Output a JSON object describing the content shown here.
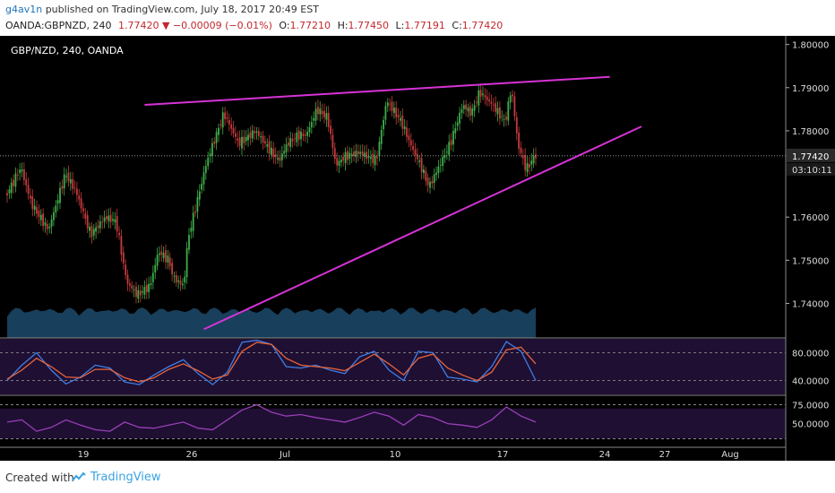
{
  "header": {
    "author": "g4av1n",
    "published_text": "published on TradingView.com, July 18, 2017 20:49 EST",
    "symbol": "OANDA:GBPNZD, 240",
    "last": "1.77420",
    "change_arrow": "▼",
    "change": "−0.00009 (−0.01%)",
    "o_label": "O:",
    "o_value": "1.77210",
    "h_label": "H:",
    "h_value": "1.77450",
    "l_label": "L:",
    "l_value": "1.77191",
    "c_label": "C:",
    "c_value": "1.77420"
  },
  "chart_data": {
    "type": "line",
    "title": "GBP/NZD, 240, OANDA",
    "xlabel": "",
    "ylabel": "",
    "x_ticks": [
      "19",
      "26",
      "Jul",
      "10",
      "17",
      "24",
      "27",
      "Aug"
    ],
    "y_ticks": [
      "1.80000",
      "1.79000",
      "1.78000",
      "1.76000",
      "1.75000",
      "1.74000"
    ],
    "ylim": [
      1.732,
      1.802
    ],
    "last_price_label": "1.77420",
    "countdown_label": "03:10:11",
    "last_price": 1.7742,
    "price_path": {
      "bar_index": [
        0,
        7,
        12,
        20,
        28,
        33,
        40,
        47,
        52,
        57,
        62,
        68,
        72,
        77,
        79,
        84,
        86,
        95,
        103,
        110,
        118,
        124,
        129,
        133,
        138,
        142,
        147,
        152,
        156,
        160,
        167,
        175,
        180,
        187,
        192,
        196,
        200,
        206,
        210,
        216,
        220,
        224,
        230,
        236,
        239,
        242,
        246,
        250
      ],
      "close": [
        1.765,
        1.7715,
        1.763,
        1.757,
        1.77,
        1.766,
        1.756,
        1.76,
        1.759,
        1.745,
        1.742,
        1.744,
        1.752,
        1.75,
        1.746,
        1.744,
        1.755,
        1.773,
        1.784,
        1.777,
        1.78,
        1.776,
        1.773,
        1.777,
        1.779,
        1.779,
        1.785,
        1.783,
        1.772,
        1.774,
        1.775,
        1.773,
        1.787,
        1.782,
        1.776,
        1.772,
        1.767,
        1.773,
        1.777,
        1.786,
        1.784,
        1.789,
        1.786,
        1.782,
        1.79,
        1.777,
        1.771,
        1.7742
      ]
    },
    "trendlines": [
      {
        "name": "upper",
        "from": {
          "bar": 65,
          "price": 1.786
        },
        "to": {
          "bar": 285,
          "price": 1.7925
        }
      },
      {
        "name": "lower",
        "from": {
          "bar": 93,
          "price": 1.734
        },
        "to": {
          "bar": 300,
          "price": 1.781
        }
      }
    ],
    "panels": [
      {
        "name": "stochastic",
        "y_ticks": [
          "80.0000",
          "40.0000"
        ],
        "ylim": [
          20,
          100
        ],
        "k": [
          40,
          62,
          80,
          55,
          35,
          45,
          62,
          58,
          38,
          34,
          48,
          60,
          70,
          50,
          34,
          52,
          95,
          98,
          92,
          60,
          58,
          62,
          55,
          50,
          74,
          82,
          55,
          40,
          82,
          80,
          45,
          42,
          38,
          60,
          96,
          82,
          40
        ],
        "d": [
          42,
          55,
          72,
          60,
          45,
          44,
          56,
          56,
          44,
          38,
          44,
          56,
          64,
          54,
          42,
          48,
          82,
          95,
          92,
          72,
          62,
          60,
          58,
          54,
          66,
          78,
          64,
          48,
          72,
          78,
          58,
          48,
          40,
          52,
          84,
          88,
          64
        ]
      },
      {
        "name": "rsi",
        "y_ticks": [
          "75.0000",
          "50.0000"
        ],
        "ylim": [
          20,
          85
        ],
        "values": [
          52,
          55,
          40,
          45,
          55,
          48,
          42,
          40,
          52,
          45,
          44,
          48,
          52,
          44,
          42,
          55,
          68,
          75,
          65,
          60,
          62,
          58,
          55,
          52,
          58,
          65,
          60,
          48,
          62,
          58,
          50,
          48,
          45,
          55,
          72,
          60,
          52
        ]
      }
    ]
  },
  "footer": {
    "created_with": "Created with",
    "brand": "TradingView"
  }
}
